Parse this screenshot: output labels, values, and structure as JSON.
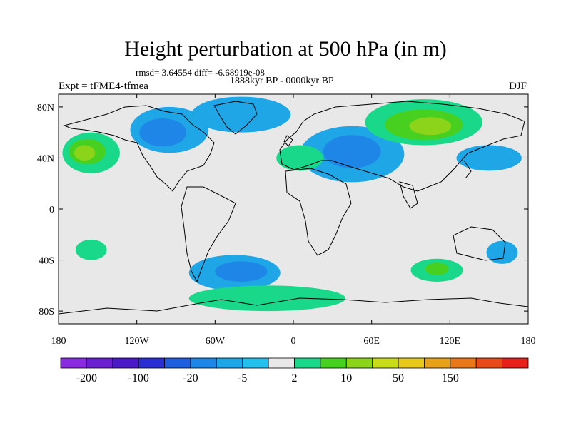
{
  "title": "Height perturbation at 500 hPa (in m)",
  "stats_line": "rmsd= 3.64554 diff= -6.68919e-08",
  "period": "1888kyr BP - 0000kyr BP",
  "experiment": "Expt = tFME4-tfmea",
  "season": "DJF",
  "map": {
    "background_color": "#e8e8e8",
    "lat_ticks": [
      {
        "value": 80,
        "label": "80N"
      },
      {
        "value": 40,
        "label": "40N"
      },
      {
        "value": 0,
        "label": "0"
      },
      {
        "value": -40,
        "label": "40S"
      },
      {
        "value": -80,
        "label": "80S"
      }
    ],
    "lon_ticks": [
      {
        "value": -180,
        "label": "180"
      },
      {
        "value": -120,
        "label": "120W"
      },
      {
        "value": -60,
        "label": "60W"
      },
      {
        "value": 0,
        "label": "0"
      },
      {
        "value": 60,
        "label": "60E"
      },
      {
        "value": 120,
        "label": "120E"
      },
      {
        "value": 180,
        "label": "180"
      }
    ]
  },
  "colorbar": {
    "colors": [
      "#8a2be2",
      "#6a1fd0",
      "#4b19c8",
      "#2a2fd4",
      "#1e5fe0",
      "#1e86e6",
      "#1ea6e6",
      "#22c0ec",
      "#e8e8e8",
      "#1ad88a",
      "#48d020",
      "#8cd41a",
      "#c8dc1a",
      "#e8c81a",
      "#e8a21a",
      "#e8781a",
      "#e84a1a",
      "#e8201a"
    ],
    "labels": [
      {
        "boundary": 1,
        "text": "-200"
      },
      {
        "boundary": 3,
        "text": "-100"
      },
      {
        "boundary": 5,
        "text": "-20"
      },
      {
        "boundary": 7,
        "text": "-5"
      },
      {
        "boundary": 9,
        "text": "2"
      },
      {
        "boundary": 11,
        "text": "10"
      },
      {
        "boundary": 13,
        "text": "50"
      },
      {
        "boundary": 15,
        "text": "150"
      }
    ]
  },
  "anomaly_regions": [
    {
      "level": "c1",
      "color": "#1ea6e6",
      "lon": -95,
      "lat": 62,
      "rlon": 30,
      "rlat": 18
    },
    {
      "level": "c2",
      "color": "#1e86e6",
      "lon": -100,
      "lat": 60,
      "rlon": 18,
      "rlat": 11
    },
    {
      "level": "c2",
      "color": "#1e86e6",
      "lon": -40,
      "lat": 75,
      "rlon": 24,
      "rlat": 10
    },
    {
      "level": "c1",
      "color": "#1ea6e6",
      "lon": -40,
      "lat": 74,
      "rlon": 38,
      "rlat": 14
    },
    {
      "level": "c1",
      "color": "#1ea6e6",
      "lon": 45,
      "lat": 43,
      "rlon": 40,
      "rlat": 22
    },
    {
      "level": "c2",
      "color": "#1e86e6",
      "lon": 45,
      "lat": 45,
      "rlon": 22,
      "rlat": 13
    },
    {
      "level": "c1",
      "color": "#1ea6e6",
      "lon": -45,
      "lat": -50,
      "rlon": 35,
      "rlat": 14
    },
    {
      "level": "c2",
      "color": "#1e86e6",
      "lon": -40,
      "lat": -49,
      "rlon": 20,
      "rlat": 8
    },
    {
      "level": "w1",
      "color": "#1ad88a",
      "lon": -155,
      "lat": 44,
      "rlon": 22,
      "rlat": 16
    },
    {
      "level": "w2",
      "color": "#48d020",
      "lon": -158,
      "lat": 45,
      "rlon": 14,
      "rlat": 10
    },
    {
      "level": "w3",
      "color": "#8cd41a",
      "lon": -160,
      "lat": 44,
      "rlon": 8,
      "rlat": 6
    },
    {
      "level": "w1",
      "color": "#1ad88a",
      "lon": 100,
      "lat": 68,
      "rlon": 45,
      "rlat": 18
    },
    {
      "level": "w2",
      "color": "#48d020",
      "lon": 100,
      "lat": 66,
      "rlon": 30,
      "rlat": 12
    },
    {
      "level": "w3",
      "color": "#8cd41a",
      "lon": 105,
      "lat": 65,
      "rlon": 16,
      "rlat": 7
    },
    {
      "level": "w1",
      "color": "#1ad88a",
      "lon": -20,
      "lat": -70,
      "rlon": 60,
      "rlat": 10
    },
    {
      "level": "w1",
      "color": "#1ad88a",
      "lon": 110,
      "lat": -48,
      "rlon": 20,
      "rlat": 9
    },
    {
      "level": "w2",
      "color": "#48d020",
      "lon": 110,
      "lat": -47,
      "rlon": 9,
      "rlat": 5
    },
    {
      "level": "w1",
      "color": "#1ad88a",
      "lon": -155,
      "lat": -32,
      "rlon": 12,
      "rlat": 8
    },
    {
      "level": "w1",
      "color": "#1ad88a",
      "lon": 5,
      "lat": 40,
      "rlon": 18,
      "rlat": 10
    },
    {
      "level": "c1",
      "color": "#1ea6e6",
      "lon": 160,
      "lat": -34,
      "rlon": 12,
      "rlat": 9
    },
    {
      "level": "c1",
      "color": "#1ea6e6",
      "lon": 150,
      "lat": 40,
      "rlon": 25,
      "rlat": 10
    }
  ]
}
